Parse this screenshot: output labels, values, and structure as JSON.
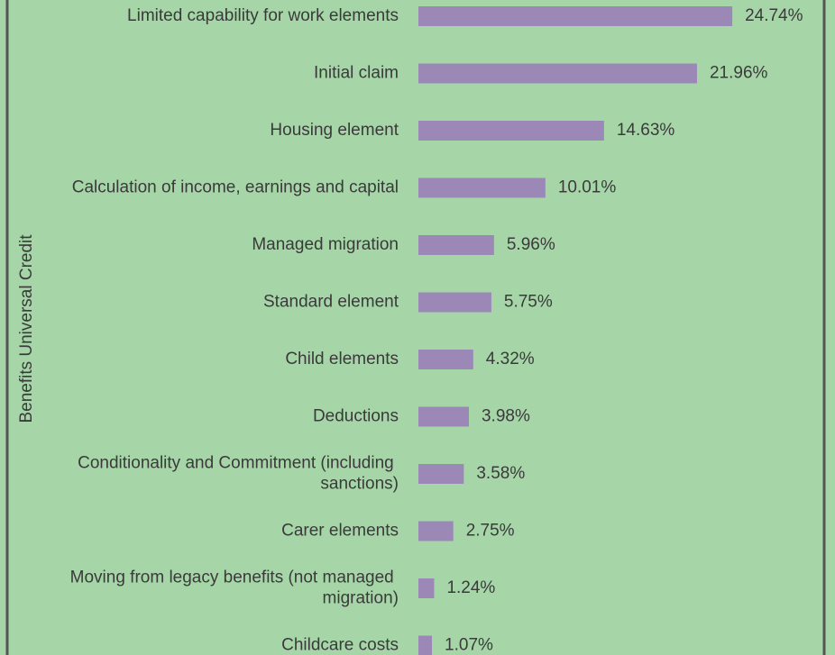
{
  "chart_data": {
    "type": "bar",
    "orientation": "horizontal",
    "y_axis_label": "Benefits Universal Credit",
    "categories": [
      "Limited capability for work elements",
      "Initial claim",
      "Housing element",
      "Calculation of income, earnings and capital",
      "Managed migration",
      "Standard element",
      "Child elements",
      "Deductions",
      "Conditionality and Commitment (including sanctions)",
      "Carer elements",
      "Moving from legacy benefits (not managed migration)",
      "Childcare costs"
    ],
    "values": [
      24.74,
      21.96,
      14.63,
      10.01,
      5.96,
      5.75,
      4.32,
      3.98,
      3.58,
      2.75,
      1.24,
      1.07
    ],
    "value_labels": [
      "24.74%",
      "21.96%",
      "14.63%",
      "10.01%",
      "5.96%",
      "5.75%",
      "4.32%",
      "3.98%",
      "3.58%",
      "2.75%",
      "1.24%",
      "1.07%"
    ],
    "color": "#9b88b6"
  }
}
